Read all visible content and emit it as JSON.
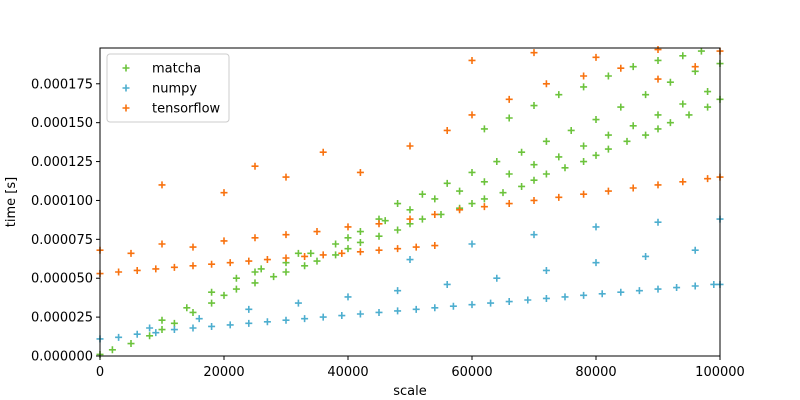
{
  "chart_data": {
    "type": "scatter",
    "marker": "+",
    "xlabel": "scale",
    "ylabel": "time [s]",
    "xlim": [
      0,
      100000
    ],
    "ylim": [
      0,
      0.000198
    ],
    "xticks": [
      0,
      20000,
      40000,
      60000,
      80000,
      100000
    ],
    "xtick_labels": [
      "0",
      "20000",
      "40000",
      "60000",
      "80000",
      "100000"
    ],
    "yticks": [
      0,
      2.5e-05,
      5e-05,
      7.5e-05,
      0.0001,
      0.000125,
      0.00015,
      0.000175
    ],
    "ytick_labels": [
      "0.000000",
      "0.000025",
      "0.000050",
      "0.000075",
      "0.000100",
      "0.000125",
      "0.000150",
      "0.000175"
    ],
    "grid": false,
    "legend_position": "upper-left",
    "colors": {
      "matcha": "#6cc33c",
      "numpy": "#4daecf",
      "tensorflow": "#f8720f"
    },
    "series": [
      {
        "name": "matcha",
        "color": "#6cc33c",
        "x": [
          0,
          2000,
          5000,
          8000,
          10000,
          12000,
          15000,
          18000,
          20000,
          22000,
          25000,
          28000,
          30000,
          33000,
          35000,
          38000,
          40000,
          42000,
          45000,
          48000,
          50000,
          52000,
          55000,
          58000,
          60000,
          62000,
          65000,
          68000,
          70000,
          72000,
          75000,
          78000,
          80000,
          82000,
          85000,
          88000,
          90000,
          92000,
          95000,
          98000,
          100000,
          10000,
          14000,
          18000,
          22000,
          26000,
          30000,
          34000,
          38000,
          42000,
          46000,
          50000,
          54000,
          58000,
          62000,
          66000,
          70000,
          74000,
          78000,
          82000,
          86000,
          90000,
          94000,
          98000,
          25000,
          32000,
          40000,
          45000,
          48000,
          52000,
          56000,
          60000,
          64000,
          68000,
          72000,
          76000,
          80000,
          84000,
          88000,
          92000,
          96000,
          100000,
          62000,
          66000,
          70000,
          74000,
          78000,
          82000,
          86000,
          90000,
          94000,
          97000
        ],
        "y": [
          1e-06,
          4e-06,
          8e-06,
          1.3e-05,
          1.7e-05,
          2.1e-05,
          2.8e-05,
          3.4e-05,
          3.9e-05,
          4.3e-05,
          4.7e-05,
          5.1e-05,
          5.4e-05,
          5.8e-05,
          6.1e-05,
          6.5e-05,
          6.9e-05,
          7.3e-05,
          7.7e-05,
          8.1e-05,
          8.5e-05,
          8.8e-05,
          9.1e-05,
          9.5e-05,
          9.8e-05,
          0.000101,
          0.000105,
          0.000109,
          0.000113,
          0.000117,
          0.000121,
          0.000125,
          0.000129,
          0.000133,
          0.000138,
          0.000142,
          0.000146,
          0.00015,
          0.000155,
          0.00016,
          0.000165,
          2.3e-05,
          3.1e-05,
          4.1e-05,
          5e-05,
          5.6e-05,
          6e-05,
          6.6e-05,
          7.2e-05,
          8e-05,
          8.7e-05,
          9.4e-05,
          0.000101,
          0.000106,
          0.000112,
          0.000117,
          0.000123,
          0.000128,
          0.000135,
          0.000142,
          0.000148,
          0.000155,
          0.000162,
          0.00017,
          5.4e-05,
          6.6e-05,
          7.6e-05,
          8.8e-05,
          9.8e-05,
          0.000104,
          0.000111,
          0.000118,
          0.000125,
          0.000131,
          0.000138,
          0.000145,
          0.000152,
          0.00016,
          0.000168,
          0.000176,
          0.000183,
          0.000188,
          0.000146,
          0.000153,
          0.000161,
          0.000168,
          0.000173,
          0.00018,
          0.000186,
          0.00019,
          0.000193,
          0.000196
        ]
      },
      {
        "name": "numpy",
        "color": "#4daecf",
        "x": [
          0,
          3000,
          6000,
          9000,
          12000,
          15000,
          18000,
          21000,
          24000,
          27000,
          30000,
          33000,
          36000,
          39000,
          42000,
          45000,
          48000,
          51000,
          54000,
          57000,
          60000,
          63000,
          66000,
          69000,
          72000,
          75000,
          78000,
          81000,
          84000,
          87000,
          90000,
          93000,
          96000,
          99000,
          100000,
          8000,
          16000,
          24000,
          32000,
          40000,
          48000,
          56000,
          64000,
          72000,
          80000,
          88000,
          96000,
          50000,
          60000,
          70000,
          80000,
          90000,
          100000
        ],
        "y": [
          1.1e-05,
          1.2e-05,
          1.4e-05,
          1.5e-05,
          1.7e-05,
          1.8e-05,
          1.9e-05,
          2e-05,
          2.1e-05,
          2.2e-05,
          2.3e-05,
          2.4e-05,
          2.5e-05,
          2.6e-05,
          2.7e-05,
          2.8e-05,
          2.9e-05,
          3e-05,
          3.1e-05,
          3.2e-05,
          3.3e-05,
          3.4e-05,
          3.5e-05,
          3.6e-05,
          3.7e-05,
          3.8e-05,
          3.9e-05,
          4e-05,
          4.1e-05,
          4.2e-05,
          4.3e-05,
          4.4e-05,
          4.5e-05,
          4.6e-05,
          4.6e-05,
          1.8e-05,
          2.4e-05,
          3e-05,
          3.4e-05,
          3.8e-05,
          4.2e-05,
          4.6e-05,
          5e-05,
          5.5e-05,
          6e-05,
          6.4e-05,
          6.8e-05,
          6.2e-05,
          7.2e-05,
          7.8e-05,
          8.3e-05,
          8.6e-05,
          8.8e-05
        ]
      },
      {
        "name": "tensorflow",
        "color": "#f8720f",
        "x": [
          0,
          3000,
          6000,
          9000,
          12000,
          15000,
          18000,
          21000,
          24000,
          27000,
          30000,
          33000,
          36000,
          39000,
          42000,
          45000,
          48000,
          51000,
          54000,
          0,
          5000,
          10000,
          15000,
          20000,
          25000,
          30000,
          35000,
          40000,
          45000,
          50000,
          54000,
          58000,
          62000,
          66000,
          70000,
          74000,
          78000,
          82000,
          86000,
          90000,
          94000,
          98000,
          100000,
          10000,
          20000,
          25000,
          30000,
          36000,
          42000,
          50000,
          56000,
          60000,
          66000,
          72000,
          78000,
          84000,
          90000,
          96000,
          60000,
          70000,
          80000,
          90000,
          100000
        ],
        "y": [
          5.3e-05,
          5.4e-05,
          5.5e-05,
          5.6e-05,
          5.7e-05,
          5.8e-05,
          5.9e-05,
          6e-05,
          6.1e-05,
          6.2e-05,
          6.3e-05,
          6.4e-05,
          6.5e-05,
          6.6e-05,
          6.7e-05,
          6.8e-05,
          6.9e-05,
          7e-05,
          7.1e-05,
          6.8e-05,
          6.6e-05,
          7.2e-05,
          7e-05,
          7.4e-05,
          7.6e-05,
          7.8e-05,
          8e-05,
          8.3e-05,
          8.5e-05,
          8.8e-05,
          9.1e-05,
          9.4e-05,
          9.6e-05,
          9.8e-05,
          0.0001,
          0.000102,
          0.000104,
          0.000106,
          0.000108,
          0.00011,
          0.000112,
          0.000114,
          0.000115,
          0.00011,
          0.000105,
          0.000122,
          0.000115,
          0.000131,
          0.000118,
          0.000135,
          0.000145,
          0.000155,
          0.000165,
          0.000175,
          0.00018,
          0.000185,
          0.000178,
          0.000186,
          0.00019,
          0.000195,
          0.000192,
          0.000197,
          0.000196
        ]
      }
    ]
  }
}
